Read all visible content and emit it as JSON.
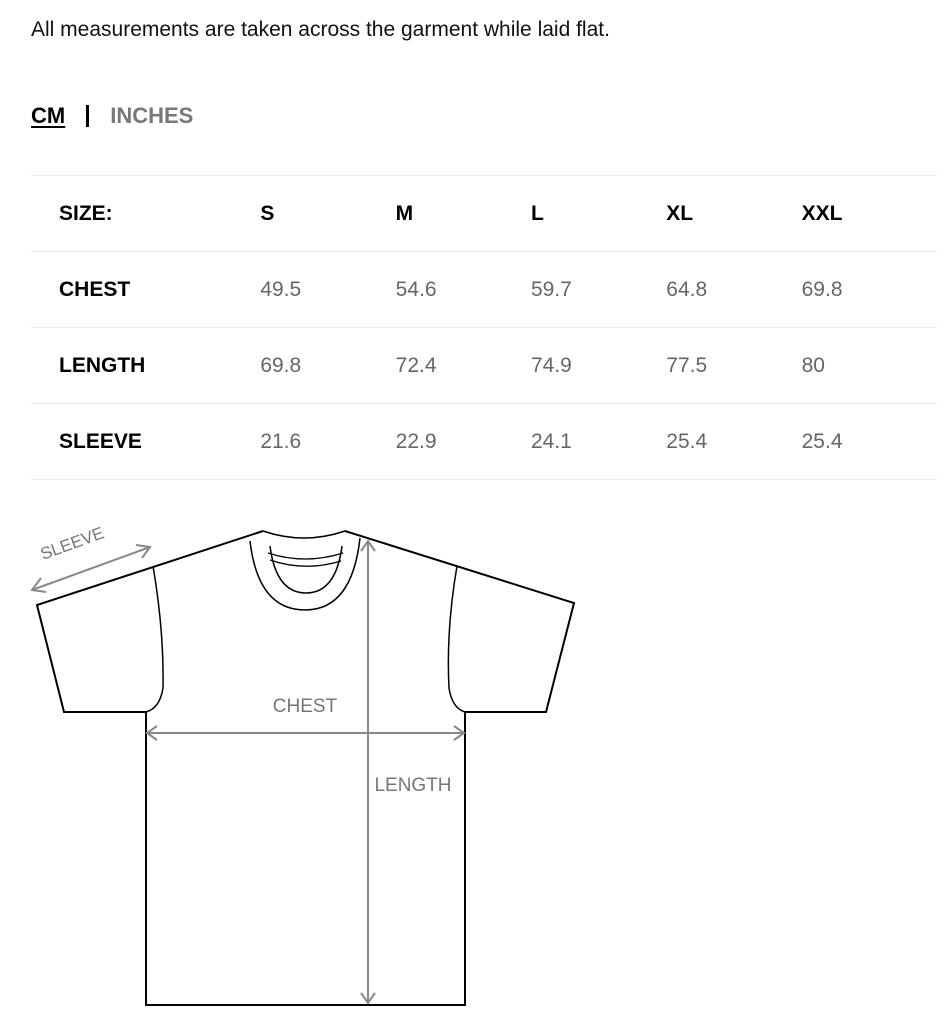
{
  "intro": "All measurements are taken across the garment while laid flat.",
  "units": {
    "active": "CM",
    "inactive": "INCHES"
  },
  "table": {
    "header": {
      "label": "SIZE:",
      "sizes": [
        "S",
        "M",
        "L",
        "XL",
        "XXL"
      ]
    },
    "rows": [
      {
        "label": "CHEST",
        "values": [
          "49.5",
          "54.6",
          "59.7",
          "64.8",
          "69.8"
        ]
      },
      {
        "label": "LENGTH",
        "values": [
          "69.8",
          "72.4",
          "74.9",
          "77.5",
          "80"
        ]
      },
      {
        "label": "SLEEVE",
        "values": [
          "21.6",
          "22.9",
          "24.1",
          "25.4",
          "25.4"
        ]
      }
    ]
  },
  "diagram": {
    "sleeve_label": "SLEEVE",
    "chest_label": "CHEST",
    "length_label": "LENGTH"
  }
}
